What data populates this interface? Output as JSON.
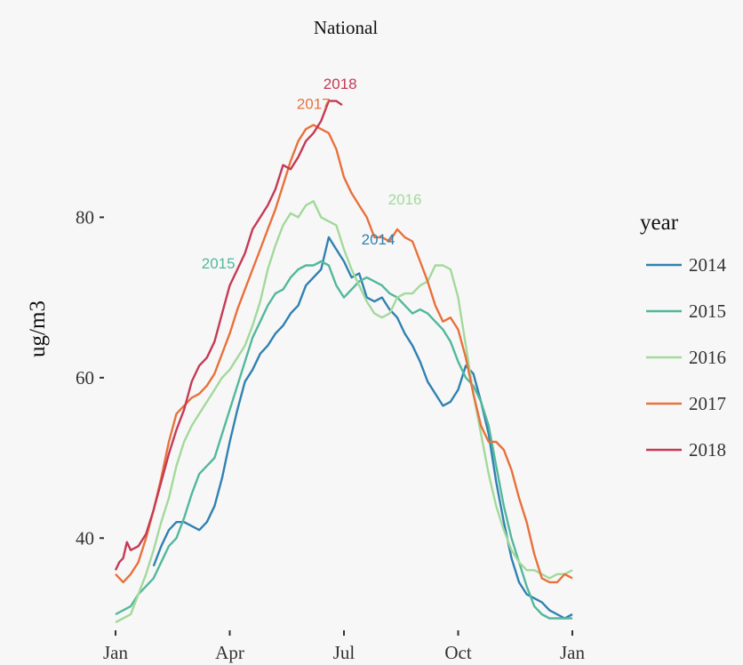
{
  "chart_data": {
    "type": "line",
    "title": "National",
    "ylabel": "ug/m3",
    "xlabel": "",
    "x_ticks": [
      "Jan",
      "Apr",
      "Jul",
      "Oct",
      "Jan"
    ],
    "x_tick_months": [
      1,
      4,
      7,
      10,
      13
    ],
    "y_ticks": [
      40,
      60,
      80
    ],
    "xlim": [
      1,
      13
    ],
    "ylim": [
      28.5,
      98
    ],
    "grid": false,
    "legend": {
      "title": "year",
      "position": "right"
    },
    "series": [
      {
        "name": "2014",
        "color": "#3181b1",
        "label_at": {
          "month": 7.9,
          "value": 76.6
        },
        "points": [
          [
            2.0,
            36.5
          ],
          [
            2.2,
            39.0
          ],
          [
            2.4,
            41.0
          ],
          [
            2.6,
            42.0
          ],
          [
            2.8,
            42.0
          ],
          [
            3.0,
            41.5
          ],
          [
            3.2,
            41.0
          ],
          [
            3.4,
            42.0
          ],
          [
            3.6,
            44.0
          ],
          [
            3.8,
            47.5
          ],
          [
            4.0,
            52.0
          ],
          [
            4.2,
            56.0
          ],
          [
            4.4,
            59.5
          ],
          [
            4.6,
            61.0
          ],
          [
            4.8,
            63.0
          ],
          [
            5.0,
            64.0
          ],
          [
            5.2,
            65.5
          ],
          [
            5.4,
            66.5
          ],
          [
            5.6,
            68.0
          ],
          [
            5.8,
            69.0
          ],
          [
            6.0,
            71.5
          ],
          [
            6.2,
            72.5
          ],
          [
            6.4,
            73.5
          ],
          [
            6.6,
            77.5
          ],
          [
            6.8,
            76.0
          ],
          [
            7.0,
            74.5
          ],
          [
            7.2,
            72.5
          ],
          [
            7.4,
            73.0
          ],
          [
            7.6,
            70.0
          ],
          [
            7.8,
            69.5
          ],
          [
            8.0,
            70.0
          ],
          [
            8.2,
            68.5
          ],
          [
            8.4,
            67.5
          ],
          [
            8.6,
            65.5
          ],
          [
            8.8,
            64.0
          ],
          [
            9.0,
            62.0
          ],
          [
            9.2,
            59.5
          ],
          [
            9.4,
            58.0
          ],
          [
            9.6,
            56.5
          ],
          [
            9.8,
            57.0
          ],
          [
            10.0,
            58.5
          ],
          [
            10.2,
            61.5
          ],
          [
            10.4,
            60.5
          ],
          [
            10.6,
            57.0
          ],
          [
            10.8,
            53.0
          ],
          [
            11.0,
            47.0
          ],
          [
            11.2,
            42.0
          ],
          [
            11.4,
            37.5
          ],
          [
            11.6,
            34.5
          ],
          [
            11.8,
            33.0
          ],
          [
            12.0,
            32.5
          ],
          [
            12.2,
            32.0
          ],
          [
            12.4,
            31.0
          ],
          [
            12.6,
            30.5
          ],
          [
            12.8,
            30.0
          ],
          [
            13.0,
            30.5
          ]
        ]
      },
      {
        "name": "2015",
        "color": "#52b89c",
        "label_at": {
          "month": 3.7,
          "value": 73.6
        },
        "points": [
          [
            1.0,
            30.5
          ],
          [
            1.2,
            31.0
          ],
          [
            1.4,
            31.5
          ],
          [
            1.6,
            33.0
          ],
          [
            1.8,
            34.0
          ],
          [
            2.0,
            35.0
          ],
          [
            2.2,
            37.0
          ],
          [
            2.4,
            39.0
          ],
          [
            2.6,
            40.0
          ],
          [
            2.8,
            42.5
          ],
          [
            3.0,
            45.5
          ],
          [
            3.2,
            48.0
          ],
          [
            3.4,
            49.0
          ],
          [
            3.6,
            50.0
          ],
          [
            3.8,
            53.0
          ],
          [
            4.0,
            56.0
          ],
          [
            4.2,
            59.0
          ],
          [
            4.4,
            62.0
          ],
          [
            4.6,
            65.0
          ],
          [
            4.8,
            67.0
          ],
          [
            5.0,
            69.0
          ],
          [
            5.2,
            70.5
          ],
          [
            5.4,
            71.0
          ],
          [
            5.6,
            72.5
          ],
          [
            5.8,
            73.5
          ],
          [
            6.0,
            74.0
          ],
          [
            6.2,
            74.0
          ],
          [
            6.4,
            74.5
          ],
          [
            6.6,
            74.0
          ],
          [
            6.8,
            71.5
          ],
          [
            7.0,
            70.0
          ],
          [
            7.2,
            71.0
          ],
          [
            7.4,
            72.0
          ],
          [
            7.6,
            72.5
          ],
          [
            7.8,
            72.0
          ],
          [
            8.0,
            71.5
          ],
          [
            8.2,
            70.5
          ],
          [
            8.4,
            70.0
          ],
          [
            8.6,
            69.0
          ],
          [
            8.8,
            68.0
          ],
          [
            9.0,
            68.5
          ],
          [
            9.2,
            68.0
          ],
          [
            9.4,
            67.0
          ],
          [
            9.6,
            66.0
          ],
          [
            9.8,
            64.5
          ],
          [
            10.0,
            62.0
          ],
          [
            10.2,
            60.0
          ],
          [
            10.4,
            59.0
          ],
          [
            10.6,
            57.0
          ],
          [
            10.8,
            54.0
          ],
          [
            11.0,
            49.0
          ],
          [
            11.2,
            44.0
          ],
          [
            11.4,
            40.0
          ],
          [
            11.6,
            37.0
          ],
          [
            11.8,
            34.0
          ],
          [
            12.0,
            31.5
          ],
          [
            12.2,
            30.5
          ],
          [
            12.4,
            30.0
          ],
          [
            12.6,
            30.0
          ],
          [
            12.8,
            30.0
          ],
          [
            13.0,
            30.0
          ]
        ]
      },
      {
        "name": "2016",
        "color": "#a3d99b",
        "label_at": {
          "month": 8.6,
          "value": 81.6
        },
        "points": [
          [
            1.0,
            29.5
          ],
          [
            1.2,
            30.0
          ],
          [
            1.4,
            30.5
          ],
          [
            1.6,
            33.0
          ],
          [
            1.8,
            35.5
          ],
          [
            2.0,
            38.5
          ],
          [
            2.2,
            42.0
          ],
          [
            2.4,
            45.0
          ],
          [
            2.6,
            49.0
          ],
          [
            2.8,
            52.0
          ],
          [
            3.0,
            54.0
          ],
          [
            3.2,
            55.5
          ],
          [
            3.4,
            57.0
          ],
          [
            3.6,
            58.5
          ],
          [
            3.8,
            60.0
          ],
          [
            4.0,
            61.0
          ],
          [
            4.2,
            62.5
          ],
          [
            4.4,
            64.0
          ],
          [
            4.6,
            66.5
          ],
          [
            4.8,
            69.5
          ],
          [
            5.0,
            73.5
          ],
          [
            5.2,
            76.5
          ],
          [
            5.4,
            79.0
          ],
          [
            5.6,
            80.5
          ],
          [
            5.8,
            80.0
          ],
          [
            6.0,
            81.5
          ],
          [
            6.2,
            82.0
          ],
          [
            6.4,
            80.0
          ],
          [
            6.6,
            79.5
          ],
          [
            6.8,
            79.0
          ],
          [
            7.0,
            76.0
          ],
          [
            7.2,
            73.5
          ],
          [
            7.4,
            71.5
          ],
          [
            7.6,
            69.5
          ],
          [
            7.8,
            68.0
          ],
          [
            8.0,
            67.5
          ],
          [
            8.2,
            68.0
          ],
          [
            8.4,
            70.0
          ],
          [
            8.6,
            70.5
          ],
          [
            8.8,
            70.5
          ],
          [
            9.0,
            71.5
          ],
          [
            9.2,
            72.0
          ],
          [
            9.4,
            74.0
          ],
          [
            9.6,
            74.0
          ],
          [
            9.8,
            73.5
          ],
          [
            10.0,
            70.0
          ],
          [
            10.2,
            64.0
          ],
          [
            10.4,
            58.0
          ],
          [
            10.6,
            53.0
          ],
          [
            10.8,
            48.0
          ],
          [
            11.0,
            44.0
          ],
          [
            11.2,
            41.0
          ],
          [
            11.4,
            38.5
          ],
          [
            11.6,
            37.0
          ],
          [
            11.8,
            36.0
          ],
          [
            12.0,
            36.0
          ],
          [
            12.2,
            35.5
          ],
          [
            12.4,
            35.0
          ],
          [
            12.6,
            35.5
          ],
          [
            12.8,
            35.5
          ],
          [
            13.0,
            36.0
          ]
        ]
      },
      {
        "name": "2017",
        "color": "#e8713c",
        "label_at": {
          "month": 6.2,
          "value": 93.5
        },
        "points": [
          [
            1.0,
            35.5
          ],
          [
            1.2,
            34.5
          ],
          [
            1.4,
            35.5
          ],
          [
            1.6,
            37.0
          ],
          [
            1.8,
            40.0
          ],
          [
            2.0,
            43.5
          ],
          [
            2.2,
            47.5
          ],
          [
            2.4,
            52.0
          ],
          [
            2.6,
            55.5
          ],
          [
            2.8,
            56.5
          ],
          [
            3.0,
            57.5
          ],
          [
            3.2,
            58.0
          ],
          [
            3.4,
            59.0
          ],
          [
            3.6,
            60.5
          ],
          [
            3.8,
            63.0
          ],
          [
            4.0,
            65.5
          ],
          [
            4.2,
            68.5
          ],
          [
            4.4,
            71.0
          ],
          [
            4.6,
            73.5
          ],
          [
            4.8,
            76.0
          ],
          [
            5.0,
            78.5
          ],
          [
            5.2,
            81.0
          ],
          [
            5.4,
            84.0
          ],
          [
            5.6,
            87.0
          ],
          [
            5.8,
            89.5
          ],
          [
            6.0,
            91.0
          ],
          [
            6.2,
            91.5
          ],
          [
            6.4,
            91.0
          ],
          [
            6.6,
            90.5
          ],
          [
            6.8,
            88.5
          ],
          [
            7.0,
            85.0
          ],
          [
            7.2,
            83.0
          ],
          [
            7.4,
            81.5
          ],
          [
            7.6,
            80.0
          ],
          [
            7.8,
            77.5
          ],
          [
            8.0,
            77.5
          ],
          [
            8.2,
            77.0
          ],
          [
            8.4,
            78.5
          ],
          [
            8.6,
            77.5
          ],
          [
            8.8,
            77.0
          ],
          [
            9.0,
            74.5
          ],
          [
            9.2,
            72.0
          ],
          [
            9.4,
            69.0
          ],
          [
            9.6,
            67.0
          ],
          [
            9.8,
            67.5
          ],
          [
            10.0,
            66.0
          ],
          [
            10.2,
            62.5
          ],
          [
            10.4,
            58.0
          ],
          [
            10.6,
            54.0
          ],
          [
            10.8,
            52.0
          ],
          [
            11.0,
            52.0
          ],
          [
            11.2,
            51.0
          ],
          [
            11.4,
            48.5
          ],
          [
            11.6,
            45.0
          ],
          [
            11.8,
            42.0
          ],
          [
            12.0,
            38.0
          ],
          [
            12.2,
            35.0
          ],
          [
            12.4,
            34.5
          ],
          [
            12.6,
            34.5
          ],
          [
            12.8,
            35.5
          ],
          [
            13.0,
            35.0
          ]
        ]
      },
      {
        "name": "2018",
        "color": "#c53a56",
        "label_at": {
          "month": 6.9,
          "value": 96.0
        },
        "points": [
          [
            1.0,
            36.0
          ],
          [
            1.1,
            37.0
          ],
          [
            1.2,
            37.5
          ],
          [
            1.3,
            39.5
          ],
          [
            1.4,
            38.5
          ],
          [
            1.6,
            39.0
          ],
          [
            1.8,
            40.5
          ],
          [
            2.0,
            43.5
          ],
          [
            2.2,
            47.0
          ],
          [
            2.4,
            50.5
          ],
          [
            2.6,
            53.5
          ],
          [
            2.8,
            56.0
          ],
          [
            3.0,
            59.5
          ],
          [
            3.2,
            61.5
          ],
          [
            3.4,
            62.5
          ],
          [
            3.6,
            64.5
          ],
          [
            3.8,
            68.0
          ],
          [
            4.0,
            71.5
          ],
          [
            4.2,
            73.5
          ],
          [
            4.4,
            75.5
          ],
          [
            4.6,
            78.5
          ],
          [
            4.8,
            80.0
          ],
          [
            5.0,
            81.5
          ],
          [
            5.2,
            83.5
          ],
          [
            5.4,
            86.5
          ],
          [
            5.6,
            86.0
          ],
          [
            5.8,
            87.5
          ],
          [
            6.0,
            89.5
          ],
          [
            6.2,
            90.5
          ],
          [
            6.4,
            92.0
          ],
          [
            6.6,
            94.5
          ],
          [
            6.8,
            94.5
          ],
          [
            6.95,
            94.0
          ]
        ]
      }
    ]
  }
}
